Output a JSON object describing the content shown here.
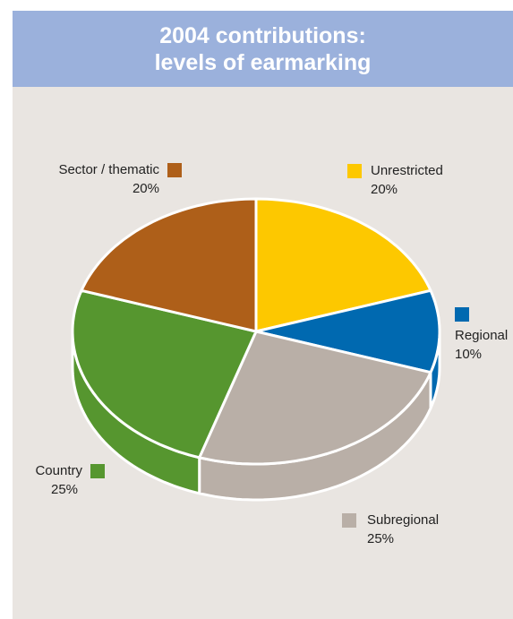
{
  "chart_data": {
    "type": "pie3d",
    "title": "2004 contributions: levels of earmarking",
    "categories": [
      "Unrestricted",
      "Regional",
      "Subregional",
      "Country",
      "Sector / thematic"
    ],
    "values": [
      20,
      10,
      25,
      25,
      20
    ],
    "value_labels": [
      "20%",
      "10%",
      "25%",
      "25%",
      "20%"
    ],
    "colors": [
      "#fdc800",
      "#0069b0",
      "#b9afa7",
      "#56962f",
      "#ae5f19"
    ]
  }
}
